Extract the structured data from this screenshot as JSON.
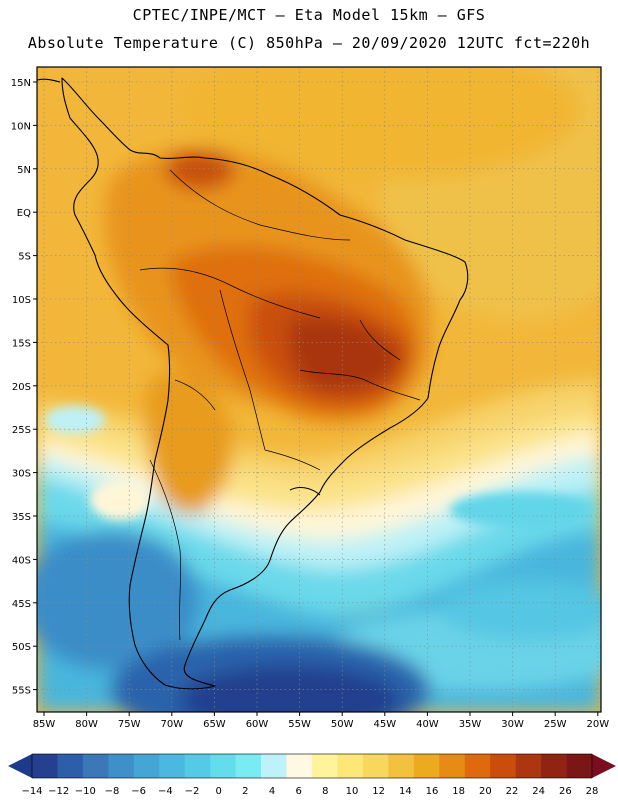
{
  "header": {
    "line1": "CPTEC/INPE/MCT –  Eta Model 15km – GFS",
    "line2": "Absolute Temperature (C) 850hPa – 20/09/2020 12UTC fct=220h"
  },
  "map": {
    "lat_labels": [
      "15N",
      "10N",
      "5N",
      "EQ",
      "5S",
      "10S",
      "15S",
      "20S",
      "25S",
      "30S",
      "35S",
      "40S",
      "45S",
      "50S",
      "55S"
    ],
    "lon_labels": [
      "85W",
      "80W",
      "75W",
      "70W",
      "65W",
      "60W",
      "55W",
      "50W",
      "45W",
      "40W",
      "35W",
      "30W",
      "25W",
      "20W"
    ]
  },
  "colorbar": {
    "labels": [
      "-14",
      "-12",
      "-10",
      "-8",
      "-6",
      "-4",
      "-2",
      "0",
      "2",
      "4",
      "6",
      "8",
      "10",
      "12",
      "14",
      "16",
      "18",
      "20",
      "22",
      "24",
      "26",
      "28"
    ],
    "colors": [
      "#24408e",
      "#2d5ea8",
      "#3a78b8",
      "#3f8fc8",
      "#45a6d6",
      "#4bb8df",
      "#55cae6",
      "#63dceb",
      "#79ecf3",
      "#bdf3f8",
      "#fff8e2",
      "#fff49c",
      "#fde777",
      "#f8d85c",
      "#f2c13e",
      "#ecab1f",
      "#e68b14",
      "#de6a0d",
      "#cb4d0b",
      "#ad3510",
      "#912313",
      "#7a1616"
    ],
    "left_arrow_color": "#1e3a8a",
    "right_arrow_color": "#7a0d20"
  }
}
